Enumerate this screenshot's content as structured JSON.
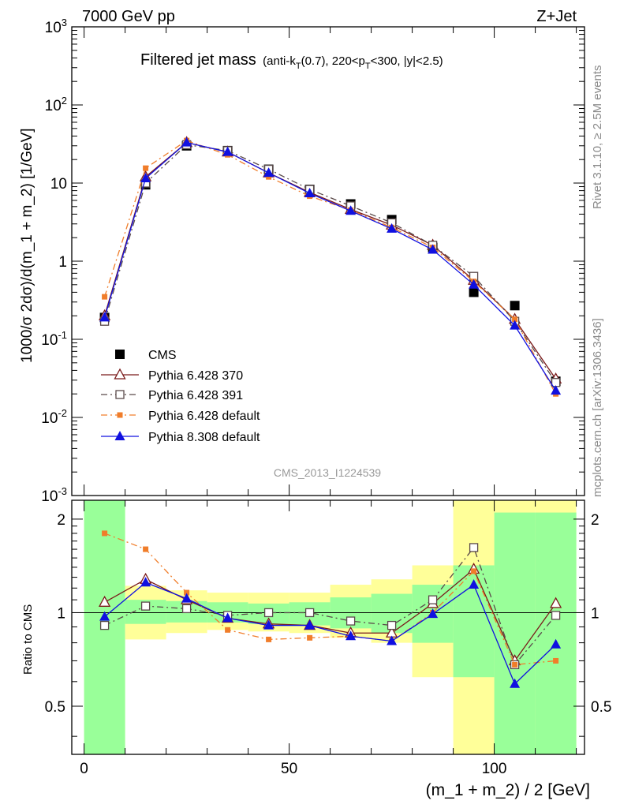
{
  "header": {
    "left": "7000 GeV pp",
    "right": "Z+Jet"
  },
  "side_labels": {
    "rivet": "Rivet 3.1.10, ≥ 2.5M events",
    "mcplots": "mcplots.cern.ch [arXiv:1306.3436]"
  },
  "plot_title": {
    "main": "Filtered jet mass",
    "sub_prefix": "(anti-k",
    "sub_t": "T",
    "sub_mid": "(0.7), 220<p",
    "sub_t2": "T",
    "sub_suffix": "<300, |y|<2.5)"
  },
  "analysis_id": "CMS_2013_I1224539",
  "chart_data": [
    {
      "type": "scatter",
      "panel": "main",
      "ylabel": "1000/σ 2dσ)/d(m_1 + m_2) [1/GeV]",
      "yscale": "log",
      "ylim": [
        0.001,
        1000
      ],
      "xlim": [
        -3,
        122
      ],
      "ytick_labels": [
        "10^3",
        "10^2",
        "10",
        "1",
        "10^-1",
        "10^-2",
        "10^-3"
      ],
      "x": [
        5,
        15,
        25,
        35,
        45,
        55,
        65,
        75,
        85,
        95,
        105,
        115
      ],
      "series": [
        {
          "name": "CMS",
          "color": "#000000",
          "marker": "filled-square",
          "line": "none",
          "values": [
            0.19,
            9.5,
            30,
            26,
            15,
            8.3,
            5.4,
            3.4,
            1.5,
            0.4,
            0.27,
            0.029
          ]
        },
        {
          "name": "Pythia 6.428 370",
          "color": "#7a1a1a",
          "marker": "open-triangle",
          "line": "solid",
          "values": [
            0.2,
            12,
            33,
            25,
            13.5,
            7.6,
            4.6,
            2.9,
            1.6,
            0.57,
            0.18,
            0.031
          ]
        },
        {
          "name": "Pythia 6.428 391",
          "color": "#5a4a4a",
          "marker": "open-square",
          "line": "dashdot",
          "values": [
            0.17,
            10,
            31,
            26,
            15,
            8.3,
            5.1,
            3.1,
            1.6,
            0.64,
            0.17,
            0.028
          ]
        },
        {
          "name": "Pythia 6.428 default",
          "color": "#f07d2a",
          "marker": "small-square",
          "line": "dashdot",
          "values": [
            0.35,
            15.5,
            35,
            23,
            12,
            6.8,
            4.5,
            2.7,
            1.5,
            0.55,
            0.18,
            0.02
          ]
        },
        {
          "name": "Pythia 8.308 default",
          "color": "#1010e0",
          "marker": "filled-triangle",
          "line": "solid",
          "values": [
            0.19,
            11.5,
            33,
            25,
            13.5,
            7.4,
            4.4,
            2.6,
            1.4,
            0.5,
            0.15,
            0.022
          ]
        }
      ]
    },
    {
      "type": "scatter",
      "panel": "ratio",
      "xlabel": "(m_1 + m_2) / 2 [GeV]",
      "ylabel": "Ratio to CMS",
      "ylim": [
        0.35,
        2.3
      ],
      "xlim": [
        -3,
        122
      ],
      "xtick_labels": [
        "0",
        "50",
        "100"
      ],
      "ytick_labels": [
        "2",
        "1",
        "0.5"
      ],
      "bins": [
        [
          0,
          10
        ],
        [
          10,
          20
        ],
        [
          20,
          30
        ],
        [
          30,
          40
        ],
        [
          40,
          50
        ],
        [
          50,
          60
        ],
        [
          60,
          70
        ],
        [
          70,
          80
        ],
        [
          80,
          90
        ],
        [
          90,
          100
        ],
        [
          100,
          110
        ],
        [
          110,
          120
        ]
      ],
      "band_outer": [
        [
          0.35,
          2.3
        ],
        [
          0.82,
          1.22
        ],
        [
          0.86,
          1.18
        ],
        [
          0.88,
          1.16
        ],
        [
          0.87,
          1.16
        ],
        [
          0.86,
          1.16
        ],
        [
          0.83,
          1.23
        ],
        [
          0.8,
          1.28
        ],
        [
          0.62,
          1.42
        ],
        [
          0.35,
          2.3
        ],
        [
          0.35,
          2.45
        ],
        [
          0.35,
          2.45
        ]
      ],
      "band_inner": [
        [
          0.35,
          2.3
        ],
        [
          0.92,
          1.1
        ],
        [
          0.93,
          1.09
        ],
        [
          0.93,
          1.08
        ],
        [
          0.92,
          1.07
        ],
        [
          0.91,
          1.08
        ],
        [
          0.89,
          1.12
        ],
        [
          0.86,
          1.15
        ],
        [
          0.8,
          1.23
        ],
        [
          0.62,
          1.42
        ],
        [
          0.35,
          2.1
        ],
        [
          0.35,
          2.1
        ]
      ],
      "series": [
        {
          "name": "Pythia 6.428 370",
          "values": [
            1.08,
            1.28,
            1.1,
            0.96,
            0.92,
            0.91,
            0.86,
            0.86,
            1.07,
            1.38,
            0.7,
            1.07
          ]
        },
        {
          "name": "Pythia 6.428 391",
          "values": [
            0.91,
            1.05,
            1.03,
            0.98,
            1.0,
            1.0,
            0.94,
            0.91,
            1.1,
            1.62,
            0.68,
            0.98
          ]
        },
        {
          "name": "Pythia 6.428 default",
          "values": [
            1.8,
            1.6,
            1.16,
            0.88,
            0.82,
            0.83,
            0.84,
            0.81,
            1.0,
            1.36,
            0.68,
            0.7
          ]
        },
        {
          "name": "Pythia 8.308 default",
          "values": [
            0.97,
            1.25,
            1.11,
            0.96,
            0.91,
            0.91,
            0.84,
            0.81,
            0.99,
            1.23,
            0.59,
            0.79
          ]
        }
      ]
    }
  ]
}
